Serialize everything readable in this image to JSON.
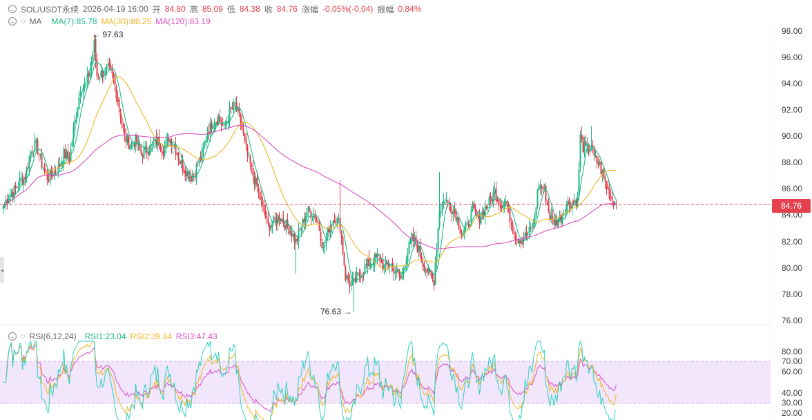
{
  "header": {
    "symbol": "SOL/USDT永续",
    "datetime": "2026-04-19 16:00",
    "open_label": "开",
    "open_value": "84.80",
    "high_label": "高",
    "high_value": "85.09",
    "low_label": "低",
    "low_value": "84.38",
    "close_label": "收",
    "close_value": "84.76",
    "change_label": "涨幅",
    "change_value": "-0.05%(-0.04)",
    "amplitude_label": "振幅",
    "amplitude_value": "0.84%"
  },
  "ma_legend": {
    "name": "MA",
    "ma7": "MA(7):85.78",
    "ma30": "MA(30):86.25",
    "ma120": "MA(120):83.19"
  },
  "rsi_legend": {
    "name": "RSI(6,12,24)",
    "rsi1": "RSI1:23.04",
    "rsi2": "RSI2:39.14",
    "rsi3": "RSI3:47.43"
  },
  "price_axis": [
    "98.00",
    "96.00",
    "94.00",
    "92.00",
    "90.00",
    "88.00",
    "86.00",
    "84.00",
    "82.00",
    "80.00",
    "78.00",
    "76.00"
  ],
  "rsi_axis": [
    "80.00",
    "70.00",
    "60.00",
    "40.00",
    "30.00",
    "20.00"
  ],
  "current_price_tag": "84.76",
  "annotations": {
    "high": "← 97.63",
    "low": "76.63 →"
  },
  "colors": {
    "up": "#1fb98a",
    "down": "#e2414d",
    "ma7": "#1fb98a",
    "ma30": "#f0b429",
    "ma120": "#d94fc6",
    "rsi1": "#2ed1c0",
    "rsi2": "#f0b429",
    "rsi3": "#d94fc6",
    "rsi_band": "#f1e6fb"
  },
  "chart_data": [
    {
      "type": "candlestick",
      "title": "SOL/USDT永续",
      "ylim": [
        75.4,
        99.2
      ],
      "grid": false,
      "current_price": 84.76,
      "annotated_high": 97.63,
      "annotated_low": 76.63,
      "close_anchors": [
        [
          0,
          84.6
        ],
        [
          4,
          85.4
        ],
        [
          8,
          85.8
        ],
        [
          12,
          86.5
        ],
        [
          16,
          86.9
        ],
        [
          20,
          88.8
        ],
        [
          24,
          89.3
        ],
        [
          28,
          87.8
        ],
        [
          32,
          86.8
        ],
        [
          36,
          87.1
        ],
        [
          40,
          87.5
        ],
        [
          44,
          88.6
        ],
        [
          48,
          88.2
        ],
        [
          52,
          91.0
        ],
        [
          56,
          93.6
        ],
        [
          60,
          93.8
        ],
        [
          64,
          95.5
        ],
        [
          66,
          96.9
        ],
        [
          68,
          94.5
        ],
        [
          72,
          94.7
        ],
        [
          76,
          95.0
        ],
        [
          80,
          94.3
        ],
        [
          84,
          92.2
        ],
        [
          88,
          89.8
        ],
        [
          92,
          89.3
        ],
        [
          96,
          89.6
        ],
        [
          100,
          88.6
        ],
        [
          104,
          88.9
        ],
        [
          108,
          89.2
        ],
        [
          112,
          89.6
        ],
        [
          116,
          88.9
        ],
        [
          120,
          89.8
        ],
        [
          124,
          89.3
        ],
        [
          128,
          88.0
        ],
        [
          132,
          87.3
        ],
        [
          136,
          86.8
        ],
        [
          140,
          87.5
        ],
        [
          144,
          88.5
        ],
        [
          148,
          90.3
        ],
        [
          152,
          91.0
        ],
        [
          156,
          91.3
        ],
        [
          160,
          90.5
        ],
        [
          164,
          91.7
        ],
        [
          168,
          92.3
        ],
        [
          172,
          91.0
        ],
        [
          176,
          88.9
        ],
        [
          180,
          87.3
        ],
        [
          184,
          86.0
        ],
        [
          188,
          84.5
        ],
        [
          192,
          83.1
        ],
        [
          196,
          83.4
        ],
        [
          200,
          83.9
        ],
        [
          204,
          83.3
        ],
        [
          208,
          82.8
        ],
        [
          212,
          81.9
        ],
        [
          216,
          83.0
        ],
        [
          220,
          84.3
        ],
        [
          224,
          84.1
        ],
        [
          228,
          83.5
        ],
        [
          232,
          81.3
        ],
        [
          236,
          83.0
        ],
        [
          240,
          83.8
        ],
        [
          244,
          83.2
        ],
        [
          248,
          79.3
        ],
        [
          252,
          78.6
        ],
        [
          254,
          78.8
        ],
        [
          256,
          79.2
        ],
        [
          260,
          79.7
        ],
        [
          264,
          80.2
        ],
        [
          268,
          80.5
        ],
        [
          272,
          80.8
        ],
        [
          276,
          80.0
        ],
        [
          280,
          80.3
        ],
        [
          284,
          79.7
        ],
        [
          288,
          79.1
        ],
        [
          292,
          80.8
        ],
        [
          296,
          82.2
        ],
        [
          300,
          81.6
        ],
        [
          304,
          80.3
        ],
        [
          308,
          79.5
        ],
        [
          312,
          79.0
        ],
        [
          316,
          84.3
        ],
        [
          320,
          85.2
        ],
        [
          324,
          84.6
        ],
        [
          328,
          84.0
        ],
        [
          332,
          82.6
        ],
        [
          336,
          83.0
        ],
        [
          340,
          84.4
        ],
        [
          344,
          83.6
        ],
        [
          348,
          84.3
        ],
        [
          352,
          84.9
        ],
        [
          356,
          85.7
        ],
        [
          360,
          84.8
        ],
        [
          364,
          85.0
        ],
        [
          368,
          83.4
        ],
        [
          372,
          82.2
        ],
        [
          376,
          82.1
        ],
        [
          380,
          82.5
        ],
        [
          384,
          83.2
        ],
        [
          388,
          86.3
        ],
        [
          392,
          85.8
        ],
        [
          396,
          83.8
        ],
        [
          400,
          83.4
        ],
        [
          404,
          83.8
        ],
        [
          408,
          84.8
        ],
        [
          412,
          84.9
        ],
        [
          416,
          85.1
        ],
        [
          418,
          89.9
        ],
        [
          420,
          89.1
        ],
        [
          424,
          88.9
        ],
        [
          426,
          89.3
        ],
        [
          428,
          88.3
        ],
        [
          432,
          87.7
        ],
        [
          436,
          86.4
        ],
        [
          440,
          85.3
        ],
        [
          444,
          84.76
        ]
      ],
      "ma_lines": [
        {
          "name": "MA(7)",
          "value": 85.78,
          "color": "#1fb98a"
        },
        {
          "name": "MA(30)",
          "value": 86.25,
          "color": "#f0b429"
        },
        {
          "name": "MA(120)",
          "value": 83.19,
          "color": "#d94fc6"
        }
      ]
    },
    {
      "type": "line",
      "title": "RSI(6,12,24)",
      "ylim": [
        10,
        90
      ],
      "band": [
        30,
        70
      ],
      "series": [
        {
          "name": "RSI1",
          "last": 23.04,
          "period": 6,
          "color": "#2ed1c0"
        },
        {
          "name": "RSI2",
          "last": 39.14,
          "period": 12,
          "color": "#f0b429"
        },
        {
          "name": "RSI3",
          "last": 47.43,
          "period": 24,
          "color": "#d94fc6"
        }
      ]
    }
  ]
}
